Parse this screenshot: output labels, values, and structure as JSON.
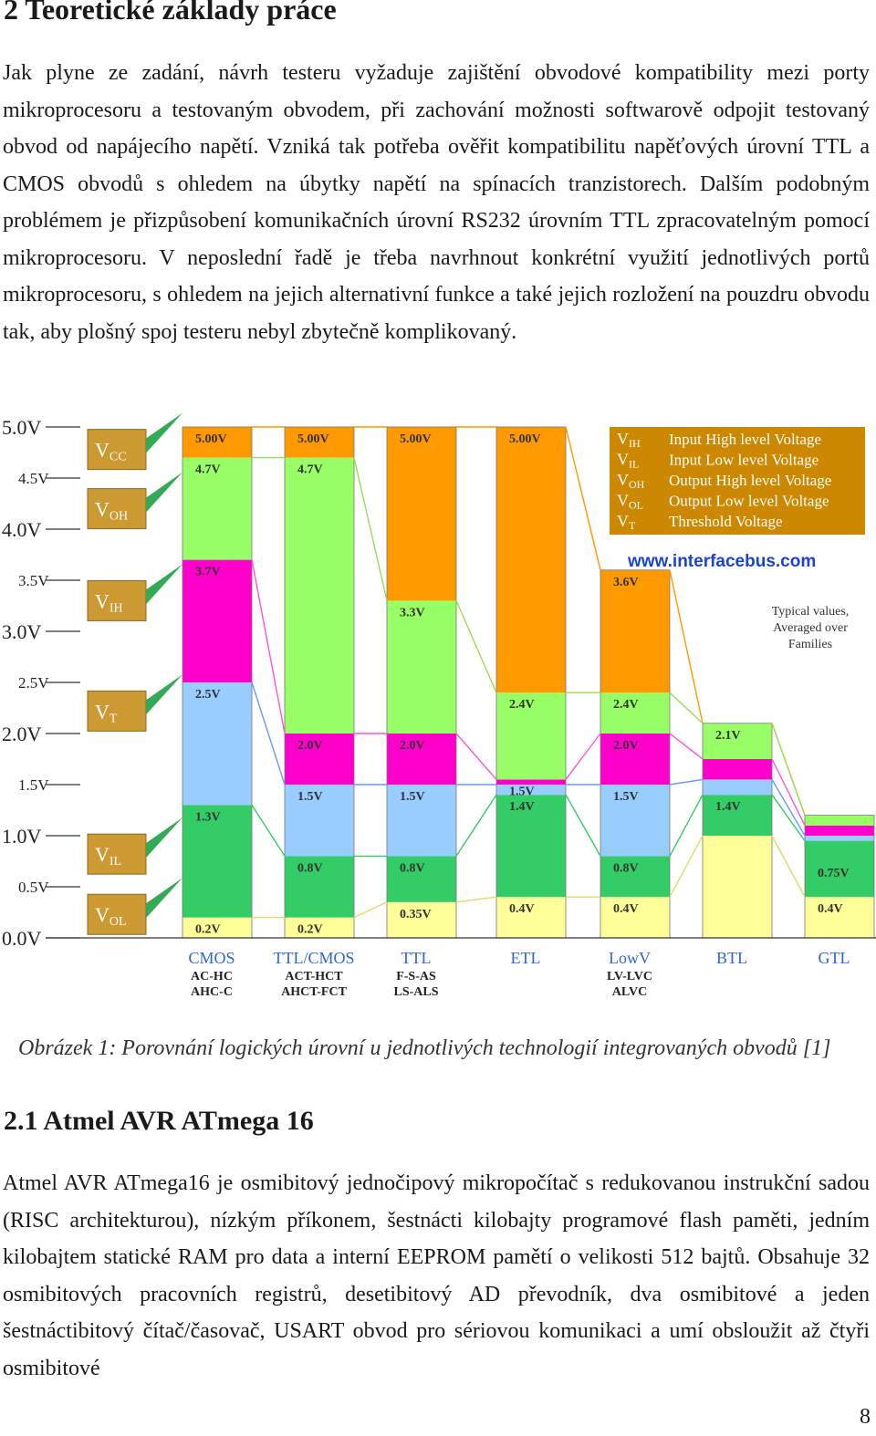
{
  "heading": "2 Teoretické základy práce",
  "paragraph1": "Jak plyne ze zadání, návrh testeru vyžaduje zajištění obvodové kompatibility mezi porty mikroprocesoru a testovaným obvodem, při zachování možnosti softwarově odpojit testovaný obvod od napájecího napětí. Vzniká tak potřeba ověřit kompatibilitu napěťových úrovní TTL a CMOS obvodů s ohledem na úbytky napětí na spínacích tranzistorech. Dalším podobným problémem je přizpůsobení komunikačních úrovní RS232 úrovním TTL zpracovatelným pomocí mikroprocesoru. V neposlední řadě je třeba navrhnout konkrétní využití jednotlivých portů mikroprocesoru, s ohledem na jejich alternativní funkce a také jejich rozložení na pouzdru obvodu tak, aby plošný spoj testeru nebyl zbytečně komplikovaný.",
  "caption": "Obrázek 1: Porovnání logických úrovní u jednotlivých technologií integrovaných obvodů [1]",
  "subheading": "2.1 Atmel AVR ATmega 16",
  "paragraph2": "Atmel AVR ATmega16 je osmibitový jednočipový mikropočítač s redukovanou instrukční sadou (RISC architekturou), nízkým příkonem, šestnácti kilobajty programové flash paměti, jedním kilobajtem statické RAM pro data a interní EEPROM pamětí o velikosti 512 bajtů. Obsahuje 32 osmibitových pracovních registrů, desetibitový AD převodník, dva osmibitové a jeden šestnáctibitový čítač/časovač, USART obvod pro sériovou komunikaci a umí obsloužit až čtyři osmibitové",
  "page_number": "8",
  "chart_data": {
    "type": "bar",
    "ylim": [
      0,
      5
    ],
    "y_ticks": [
      "0.0V",
      "0.5V",
      "1.0V",
      "1.5V",
      "2.0V",
      "2.5V",
      "3.0V",
      "3.5V",
      "4.0V",
      "4.5V",
      "5.0V"
    ],
    "y_tick_values": [
      0,
      0.5,
      1,
      1.5,
      2,
      2.5,
      3,
      3.5,
      4,
      4.5,
      5
    ],
    "level_labels": [
      {
        "main": "V",
        "sub": "CC",
        "v": 4.78
      },
      {
        "main": "V",
        "sub": "OH",
        "v": 4.2
      },
      {
        "main": "V",
        "sub": "IH",
        "v": 3.3
      },
      {
        "main": "V",
        "sub": "T",
        "v": 2.22
      },
      {
        "main": "V",
        "sub": "IL",
        "v": 0.82
      },
      {
        "main": "V",
        "sub": "OL",
        "v": 0.23
      }
    ],
    "legend": [
      {
        "sym": "V",
        "sub": "IH",
        "text": "Input High level Voltage"
      },
      {
        "sym": "V",
        "sub": "IL",
        "text": "Input Low level Voltage"
      },
      {
        "sym": "V",
        "sub": "OH",
        "text": "Output High level Voltage"
      },
      {
        "sym": "V",
        "sub": "OL",
        "text": "Output Low level Voltage"
      },
      {
        "sym": "V",
        "sub": "T",
        "text": "Threshold Voltage"
      }
    ],
    "website": "www.interfacebus.com",
    "note": [
      "Typical values,",
      "Averaged over",
      "Families"
    ],
    "families": [
      {
        "name": "CMOS",
        "sub": [
          "AC-HC",
          "AHC-C"
        ],
        "vcc": 5.0,
        "voh": 4.7,
        "vih": 3.7,
        "vt": 2.5,
        "vil": 1.3,
        "vol": 0.2,
        "labels": [
          [
            "5.00V",
            5.0
          ],
          [
            "4.7V",
            4.7
          ],
          [
            "3.7V",
            3.7
          ],
          [
            "2.5V",
            2.5
          ],
          [
            "1.3V",
            1.3
          ],
          [
            "0.2V",
            0.2
          ]
        ]
      },
      {
        "name": "TTL/CMOS",
        "sub": [
          "ACT-HCT",
          "AHCT-FCT"
        ],
        "vcc": 5.0,
        "voh": 4.7,
        "vih": 2.0,
        "vt": 1.5,
        "vil": 0.8,
        "vol": 0.2,
        "labels": [
          [
            "5.00V",
            5.0
          ],
          [
            "4.7V",
            4.7
          ],
          [
            "2.0V",
            2.0
          ],
          [
            "1.5V",
            1.5
          ],
          [
            "0.8V",
            0.8
          ],
          [
            "0.2V",
            0.2
          ]
        ]
      },
      {
        "name": "TTL",
        "sub": [
          "F-S-AS",
          "LS-ALS"
        ],
        "vcc": 5.0,
        "voh": 3.3,
        "vih": 2.0,
        "vt": 1.5,
        "vil": 0.8,
        "vol": 0.35,
        "labels": [
          [
            "5.00V",
            5.0
          ],
          [
            "3.3V",
            3.3
          ],
          [
            "2.0V",
            2.0
          ],
          [
            "1.5V",
            1.5
          ],
          [
            "0.8V",
            0.8
          ],
          [
            "0.35V",
            0.35
          ]
        ]
      },
      {
        "name": "ETL",
        "sub": [],
        "vcc": 5.0,
        "voh": 2.4,
        "vih": 1.55,
        "vt": 1.5,
        "vil": 1.4,
        "vol": 0.4,
        "labels": [
          [
            "5.00V",
            5.0
          ],
          [
            "2.4V",
            2.4
          ],
          [
            "1.5V",
            1.55
          ],
          [
            "1.4V",
            1.4
          ],
          [
            "0.4V",
            0.4
          ]
        ]
      },
      {
        "name": "LowV",
        "sub": [
          "LV-LVC",
          "ALVC"
        ],
        "vcc": 3.6,
        "voh": 2.4,
        "vih": 2.0,
        "vt": 1.5,
        "vil": 0.8,
        "vol": 0.4,
        "labels": [
          [
            "3.6V",
            3.6
          ],
          [
            "2.4V",
            2.4
          ],
          [
            "2.0V",
            2.0
          ],
          [
            "1.5V",
            1.5
          ],
          [
            "0.8V",
            0.8
          ],
          [
            "0.4V",
            0.4
          ]
        ]
      },
      {
        "name": "BTL",
        "sub": [],
        "vcc": 2.1,
        "voh": 2.1,
        "vih": 1.75,
        "vt": 1.55,
        "vil": 1.4,
        "vol": 1.0,
        "labels": [
          [
            "2.1V",
            2.1
          ],
          [
            "1.4V",
            1.4
          ]
        ]
      },
      {
        "name": "GTL",
        "sub": [],
        "vcc": 1.2,
        "voh": 1.2,
        "vih": 1.1,
        "vt": 1.0,
        "vil": 0.95,
        "vol": 0.4,
        "labels": [
          [
            "0.75V",
            0.75
          ],
          [
            "0.4V",
            0.4
          ]
        ]
      }
    ],
    "colors": {
      "orange": "#ff9900",
      "green": "#99ff66",
      "magenta": "#ff00cc",
      "blue": "#99ccff",
      "darkgreen": "#33cc66",
      "yellow": "#ffff99",
      "label_box": "#cc9933",
      "legend_box": "#cc8800"
    }
  }
}
